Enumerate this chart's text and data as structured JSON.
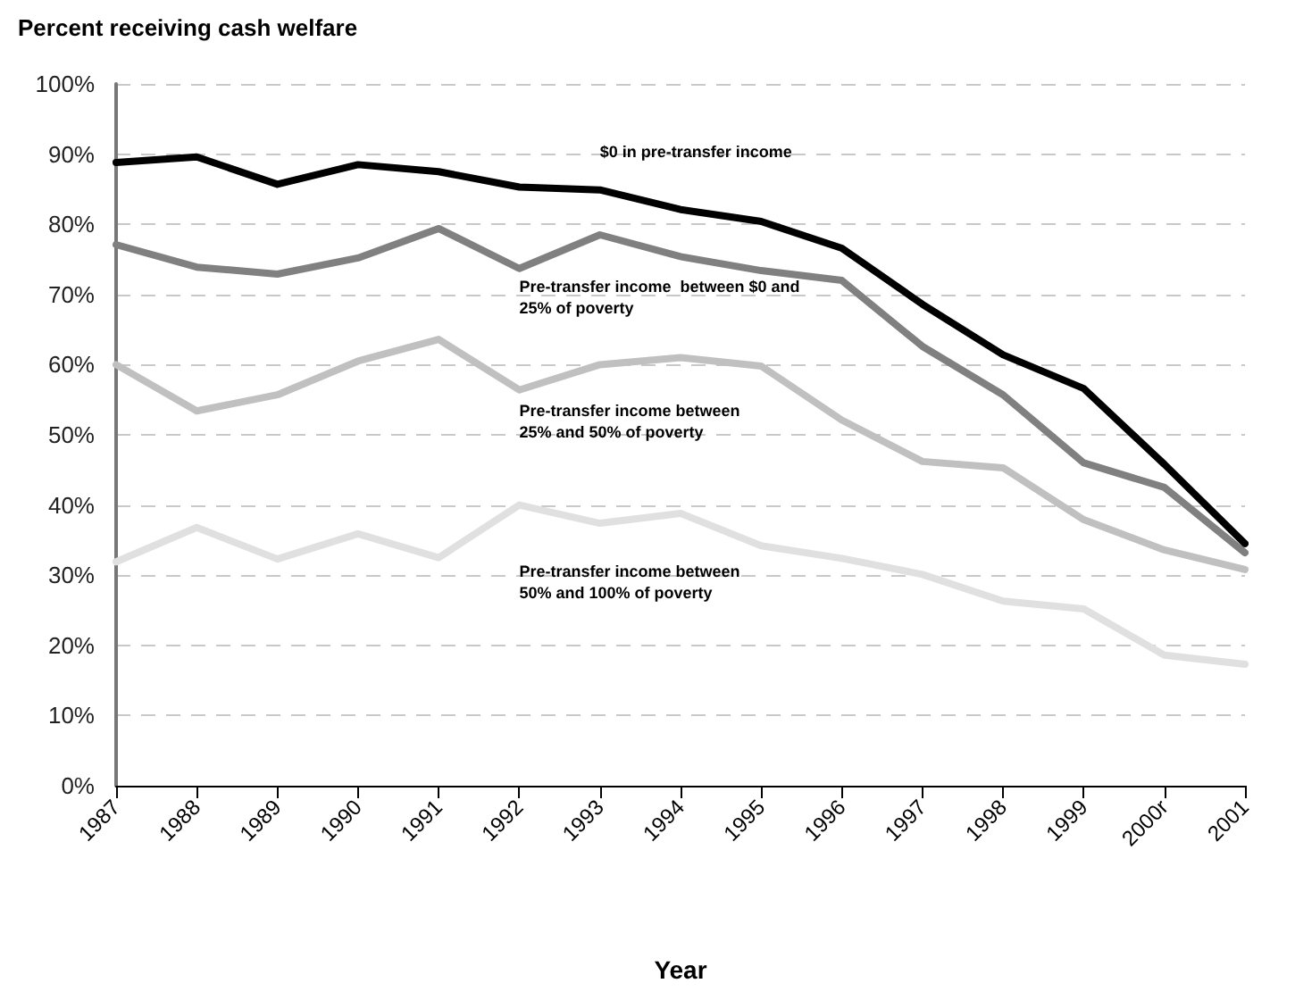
{
  "chart_data": {
    "type": "line",
    "title": "Percent receiving cash welfare",
    "xlabel": "Year",
    "categories": [
      "1987",
      "1988",
      "1989",
      "1990",
      "1991",
      "1992",
      "1993",
      "1994",
      "1995",
      "1996",
      "1997",
      "1998",
      "1999",
      "2000r",
      "2001"
    ],
    "series": [
      {
        "name": "$0 in pre-transfer income",
        "color": "#000000",
        "values": [
          88.8,
          89.6,
          85.7,
          88.5,
          87.5,
          85.3,
          84.9,
          82.1,
          80.4,
          76.6,
          68.6,
          61.4,
          56.6,
          45.8,
          34.5
        ]
      },
      {
        "name": "Pre-transfer income  between $0 and 25% of poverty",
        "color": "#808080",
        "values": [
          77.1,
          73.9,
          72.9,
          75.2,
          79.4,
          73.7,
          78.5,
          75.4,
          73.4,
          72.0,
          62.6,
          55.7,
          46.0,
          42.5,
          33.2
        ]
      },
      {
        "name": "Pre-transfer income between 25% and 50% of poverty",
        "color": "#c0c0c0",
        "values": [
          60.0,
          53.4,
          55.7,
          60.5,
          63.6,
          56.4,
          60.0,
          61.0,
          59.8,
          52.1,
          46.2,
          45.3,
          37.9,
          33.6,
          30.8
        ]
      },
      {
        "name": "Pre-transfer income between 50% and 100% of poverty",
        "color": "#e0e0e0",
        "values": [
          31.9,
          36.8,
          32.3,
          35.9,
          32.5,
          40.0,
          37.4,
          38.8,
          34.2,
          32.4,
          30.1,
          26.3,
          25.2,
          18.6,
          17.3
        ]
      }
    ],
    "ylim": [
      0,
      100
    ],
    "yticks": [
      {
        "value": 0,
        "label": "0%"
      },
      {
        "value": 10,
        "label": "10%"
      },
      {
        "value": 20,
        "label": "20%"
      },
      {
        "value": 30,
        "label": "30%"
      },
      {
        "value": 40,
        "label": "40%"
      },
      {
        "value": 50,
        "label": "50%"
      },
      {
        "value": 60,
        "label": "60%"
      },
      {
        "value": 70,
        "label": "70%"
      },
      {
        "value": 80,
        "label": "80%"
      },
      {
        "value": 90,
        "label": "90%"
      },
      {
        "value": 100,
        "label": "100%"
      }
    ],
    "grid": "y",
    "legend": false,
    "marker": "none",
    "line_style": "solid"
  }
}
